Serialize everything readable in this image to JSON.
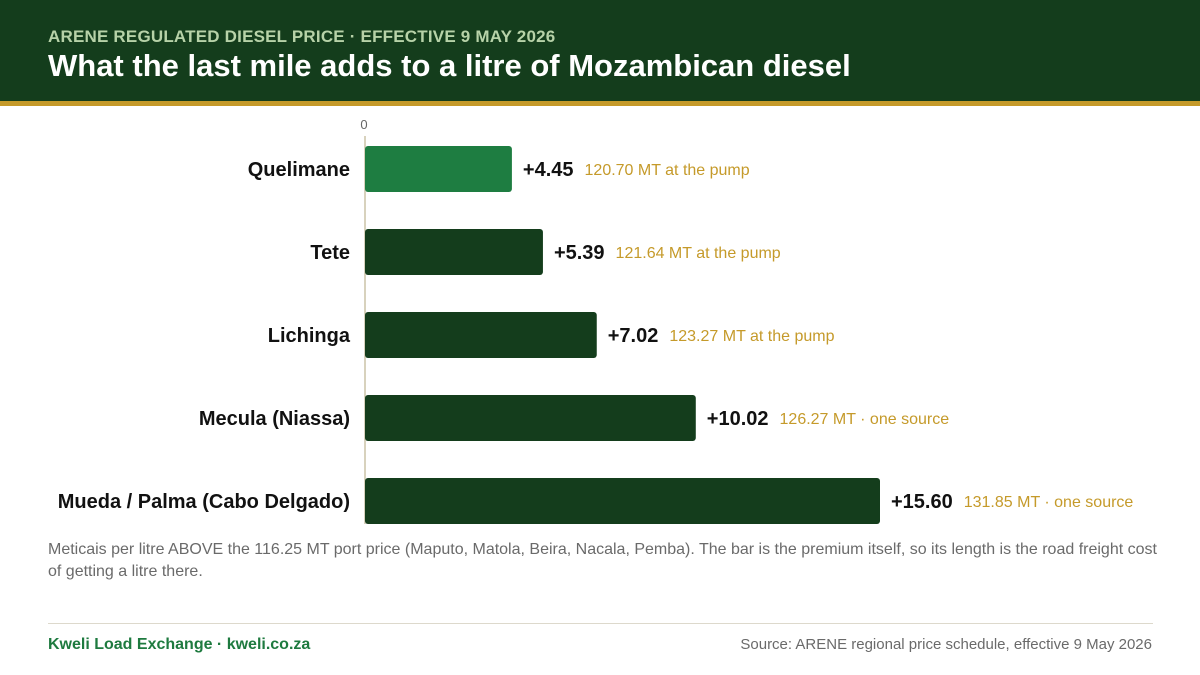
{
  "header": {
    "kicker": "ARENE REGULATED DIESEL PRICE · EFFECTIVE 9 MAY 2026",
    "title": "What the last mile adds to a litre of Mozambican diesel"
  },
  "chart_data": {
    "type": "bar",
    "orientation": "horizontal",
    "title": "What the last mile adds to a litre of Mozambican diesel",
    "categories": [
      "Quelimane",
      "Tete",
      "Lichinga",
      "Mecula (Niassa)",
      "Mueda / Palma (Cabo Delgado)"
    ],
    "values": [
      4.45,
      5.39,
      7.02,
      10.02,
      15.6
    ],
    "value_labels": [
      "+4.45",
      "+5.39",
      "+7.02",
      "+10.02",
      "+15.60"
    ],
    "annotations": [
      "120.70 MT at the pump",
      "121.64 MT at the pump",
      "123.27 MT at the pump",
      "126.27 MT · one source",
      "131.85 MT · one source"
    ],
    "axis_tick": "0",
    "xlim": [
      0,
      15.6
    ],
    "highlight_index": 0,
    "colors": {
      "highlight": "#1e7d41",
      "bar": "#143d1c",
      "label": "#111111",
      "annotation": "#c59a2a",
      "axis": "#d8d2bd"
    },
    "grid": false
  },
  "note": "Meticais per litre ABOVE the 116.25 MT port price (Maputo, Matola, Beira, Nacala, Pemba). The bar is the premium itself, so its length is the road freight cost of getting a litre there.",
  "footer": {
    "brand": "Kweli Load Exchange · kweli.co.za",
    "source": "Source: ARENE regional price schedule, effective 9 May 2026"
  }
}
